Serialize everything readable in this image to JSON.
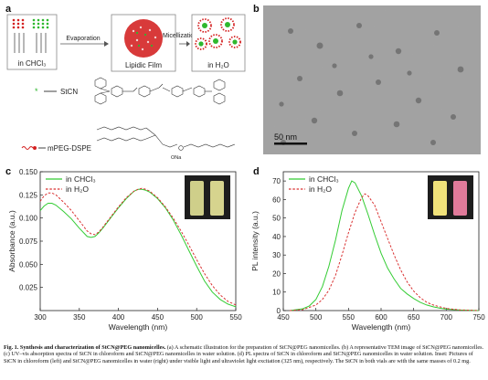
{
  "panels": {
    "a": "a",
    "b": "b",
    "c": "c",
    "d": "d"
  },
  "schematic": {
    "step1_label": "in CHCl₃",
    "arrow1_label": "Evaporation",
    "step2_label": "Lipidic Film",
    "arrow2_label": "Micellization",
    "step3_label": "in H₂O",
    "legend_stcn": "StCN",
    "legend_peg": "mPEG-DSPE",
    "na_label": "ONa"
  },
  "tem": {
    "scale_bar_label": "50 nm"
  },
  "colors": {
    "chcl3": "#33cc33",
    "h2o": "#d93030",
    "tem_bg": "#9a9a9a"
  },
  "chart_data": [
    {
      "type": "line",
      "panel": "c",
      "xlabel": "Wavelength (nm)",
      "ylabel": "Absorbance (a.u.)",
      "xlim": [
        300,
        550
      ],
      "ylim": [
        0.0,
        0.15
      ],
      "xticks": [
        300,
        350,
        400,
        450,
        500,
        550
      ],
      "yticks": [
        0.025,
        0.05,
        0.075,
        0.1,
        0.125,
        0.15
      ],
      "ytick_labels": [
        "0.025",
        "0.050",
        "0.075",
        "0.100",
        "0.125",
        "0.150"
      ],
      "legend_position": "top-left",
      "series": [
        {
          "name": "in CHCl₃",
          "style": "solid",
          "x": [
            300,
            305,
            310,
            315,
            320,
            330,
            340,
            350,
            360,
            365,
            370,
            375,
            380,
            390,
            400,
            410,
            420,
            425,
            430,
            435,
            440,
            450,
            460,
            470,
            480,
            490,
            500,
            510,
            520,
            530,
            540,
            550
          ],
          "y": [
            0.108,
            0.113,
            0.116,
            0.116,
            0.114,
            0.107,
            0.099,
            0.089,
            0.08,
            0.079,
            0.08,
            0.084,
            0.089,
            0.1,
            0.111,
            0.121,
            0.129,
            0.131,
            0.131,
            0.13,
            0.128,
            0.121,
            0.111,
            0.098,
            0.082,
            0.065,
            0.048,
            0.032,
            0.02,
            0.012,
            0.007,
            0.004
          ]
        },
        {
          "name": "in H₂O",
          "style": "dashed",
          "x": [
            300,
            305,
            310,
            315,
            320,
            330,
            340,
            350,
            360,
            365,
            370,
            375,
            380,
            390,
            400,
            410,
            420,
            425,
            430,
            435,
            440,
            450,
            460,
            470,
            480,
            490,
            500,
            510,
            520,
            530,
            540,
            550
          ],
          "y": [
            0.118,
            0.124,
            0.127,
            0.127,
            0.125,
            0.117,
            0.108,
            0.097,
            0.086,
            0.083,
            0.082,
            0.085,
            0.09,
            0.101,
            0.112,
            0.122,
            0.129,
            0.131,
            0.132,
            0.131,
            0.129,
            0.122,
            0.112,
            0.1,
            0.086,
            0.071,
            0.055,
            0.04,
            0.027,
            0.017,
            0.01,
            0.006
          ]
        }
      ]
    },
    {
      "type": "line",
      "panel": "d",
      "xlabel": "Wavelength (nm)",
      "ylabel": "PL intensity (a.u.)",
      "xlim": [
        450,
        750
      ],
      "ylim": [
        0,
        75
      ],
      "xticks": [
        450,
        500,
        550,
        600,
        650,
        700,
        750
      ],
      "yticks": [
        0,
        10,
        20,
        30,
        40,
        50,
        60,
        70
      ],
      "legend_position": "top-left",
      "series": [
        {
          "name": "in CHCl₃",
          "style": "solid",
          "x": [
            460,
            480,
            490,
            500,
            510,
            520,
            530,
            540,
            550,
            555,
            560,
            570,
            580,
            590,
            600,
            610,
            620,
            630,
            640,
            650,
            660,
            670,
            680,
            690,
            700,
            720,
            750
          ],
          "y": [
            0,
            1,
            2.5,
            6,
            13,
            24,
            38,
            54,
            66,
            70,
            69,
            62,
            52,
            41,
            31,
            23,
            17,
            12,
            9,
            6.5,
            4.5,
            3,
            2,
            1.3,
            0.8,
            0.3,
            0
          ]
        },
        {
          "name": "in H₂O",
          "style": "dashed",
          "x": [
            460,
            480,
            500,
            510,
            520,
            530,
            540,
            550,
            560,
            570,
            575,
            580,
            590,
            600,
            610,
            620,
            630,
            640,
            650,
            660,
            670,
            680,
            690,
            700,
            720,
            750
          ],
          "y": [
            0,
            0.5,
            3,
            6,
            11,
            19,
            30,
            42,
            53,
            61,
            63,
            62,
            57,
            48,
            39,
            30,
            22,
            15.5,
            10.5,
            7,
            4.5,
            3,
            2,
            1.2,
            0.4,
            0
          ]
        }
      ]
    }
  ],
  "caption": {
    "head": "Fig. 1.",
    "title": " Synthesis and characterization of StCN@PEG nanomicelles.",
    "body": " (a) A schematic illustration for the preparation of StCN@PEG nanomicelles. (b) A representative TEM image of StCN@PEG nanomicelles. (c) UV–vis absorption spectra of StCN in chloroform and StCN@PEG nanomicelles in water solution. (d) PL spectra of StCN in chloroform and StCN@PEG nanomicelles in water solution. Inset: Pictures of StCN in chloroform (left) and StCN@PEG nanomicelles in water (right) under visible light and ultraviolet light excitation (325 nm), respectively. The StCN in both vials are with the same masses of 0.2 mg."
  }
}
